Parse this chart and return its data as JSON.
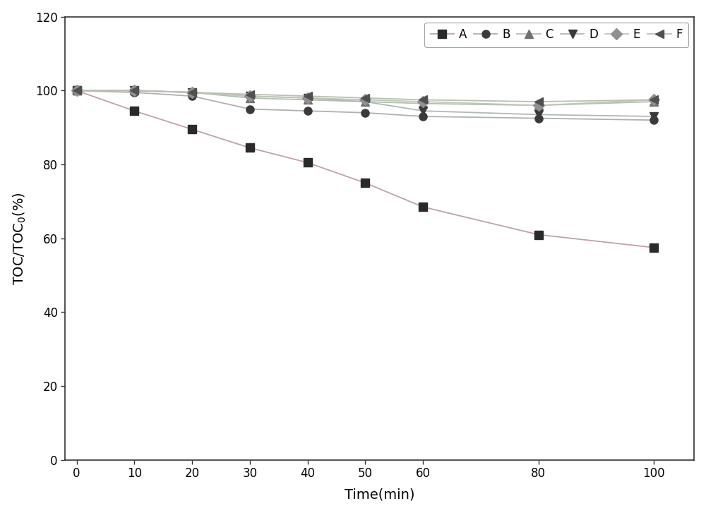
{
  "x": [
    0,
    10,
    20,
    30,
    40,
    50,
    60,
    80,
    100
  ],
  "series": {
    "A": [
      100,
      94.5,
      89.5,
      84.5,
      80.5,
      75,
      68.5,
      61,
      57.5
    ],
    "B": [
      100,
      99.5,
      98.5,
      95,
      94.5,
      94,
      93,
      92.5,
      92
    ],
    "C": [
      100,
      100,
      99.5,
      98,
      97.5,
      97,
      96.5,
      96,
      97
    ],
    "D": [
      100,
      100,
      99.5,
      98.5,
      98,
      97,
      94.5,
      93.5,
      93
    ],
    "E": [
      100,
      100,
      99.5,
      98.5,
      98,
      97.5,
      97,
      96,
      97.5
    ],
    "F": [
      100,
      100,
      99.5,
      99,
      98.5,
      98,
      97.5,
      97,
      97.5
    ]
  },
  "line_colors": {
    "A": "#c0a0b0",
    "B": "#b0b0b0",
    "C": "#b0c0b0",
    "D": "#b0b8b8",
    "E": "#c0c8b8",
    "F": "#b8c0b0"
  },
  "marker_colors": {
    "A": "#2a2a2a",
    "B": "#3a3a3a",
    "C": "#707070",
    "D": "#3a3a3a",
    "E": "#909090",
    "F": "#505050"
  },
  "markers": {
    "A": "s",
    "B": "o",
    "C": "^",
    "D": "v",
    "E": "D",
    "F": "<"
  },
  "xlabel": "Time(min)",
  "ylabel": "TOC/TOC$_0$(%)",
  "xlim": [
    -2,
    107
  ],
  "ylim": [
    0,
    120
  ],
  "xticks": [
    0,
    10,
    20,
    30,
    40,
    50,
    60,
    80,
    100
  ],
  "yticks": [
    0,
    20,
    40,
    60,
    80,
    100,
    120
  ],
  "legend_loc": "upper right",
  "figsize": [
    10.0,
    7.27
  ],
  "dpi": 100,
  "background_color": "#ffffff",
  "plot_background": "#ffffff"
}
